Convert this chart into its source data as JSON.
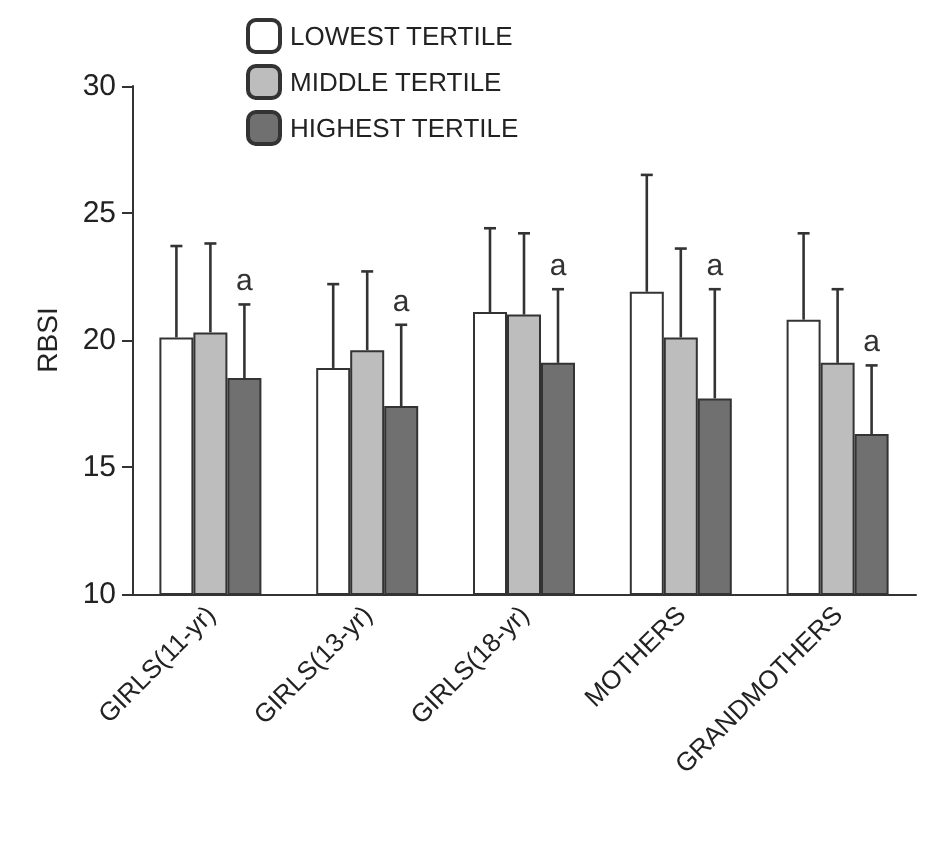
{
  "chart_data": {
    "type": "bar",
    "ylabel": "RBSI",
    "categories": [
      "GIRLS(11-yr)",
      "GIRLS(13-yr)",
      "GIRLS(18-yr)",
      "MOTHERS",
      "GRANDMOTHERS"
    ],
    "series": [
      {
        "name": "LOWEST TERTILE",
        "color": "#ffffff",
        "values": [
          20.1,
          18.9,
          21.1,
          21.9,
          20.8
        ],
        "errors": [
          [
            20.1,
            23.7
          ],
          [
            18.9,
            22.2
          ],
          [
            21.1,
            24.4
          ],
          [
            21.9,
            26.5
          ],
          [
            20.8,
            24.2
          ]
        ]
      },
      {
        "name": "MIDDLE TERTILE",
        "color": "#bdbdbd",
        "values": [
          20.3,
          19.6,
          21.0,
          20.1,
          19.1
        ],
        "errors": [
          [
            20.3,
            23.8
          ],
          [
            19.6,
            22.7
          ],
          [
            21.0,
            24.2
          ],
          [
            20.1,
            23.6
          ],
          [
            19.1,
            22.0
          ]
        ]
      },
      {
        "name": "HIGHEST TERTILE",
        "color": "#707070",
        "values": [
          18.5,
          17.4,
          19.1,
          17.7,
          16.3
        ],
        "errors": [
          [
            18.5,
            21.4
          ],
          [
            17.4,
            20.6
          ],
          [
            19.1,
            22.0
          ],
          [
            17.7,
            22.0
          ],
          [
            16.3,
            19.0
          ]
        ]
      }
    ],
    "annotations": [
      {
        "text": "a",
        "x": "GIRLS(11-yr)",
        "y": 21.4
      },
      {
        "text": "a",
        "x": "GIRLS(13-yr)",
        "y": 20.6
      },
      {
        "text": "a",
        "x": "GIRLS(18-yr)",
        "y": 22.0
      },
      {
        "text": "a",
        "x": "MOTHERS",
        "y": 22.0
      },
      {
        "text": "a",
        "x": "GRANDMOTHERS",
        "y": 19.0
      }
    ],
    "ylim": [
      10,
      30
    ],
    "yticks": [
      10,
      15,
      20,
      25,
      30
    ],
    "grid": false,
    "legend": "top"
  }
}
